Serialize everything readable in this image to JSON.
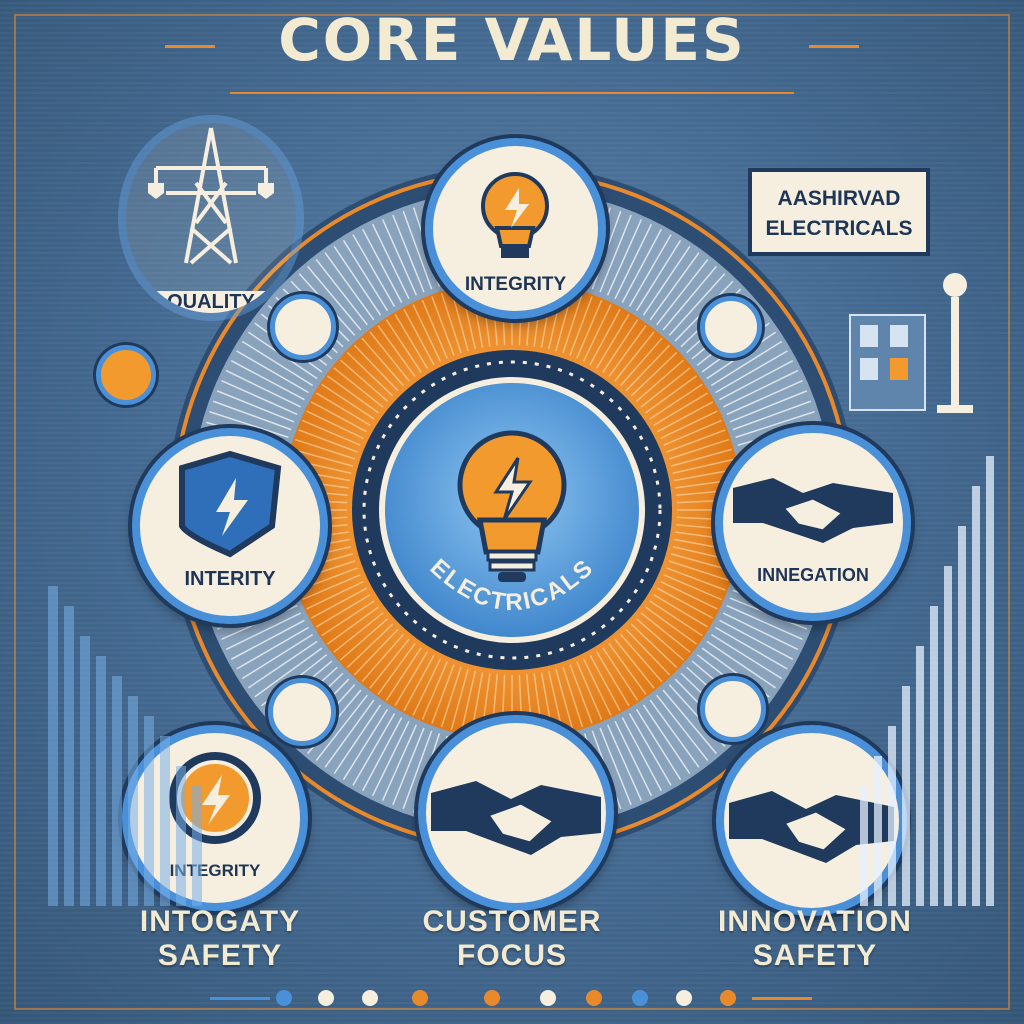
{
  "title": "CORE VALUES",
  "brand": {
    "line1": "AASHIRVAD",
    "line2": "ELECTRICALS"
  },
  "center_label": "ELECTRICALS",
  "nodes": {
    "top": "INTEGRITY",
    "quality": "QUALITY",
    "left": "INTERITY",
    "right": "INNEGATION",
    "bottom_left": "INTEGRITY"
  },
  "captions": {
    "left": {
      "line1": "INTOGATY",
      "line2": "SAFETY"
    },
    "center": {
      "line1": "CUSTOMER",
      "line2": "FOCUS"
    },
    "right": {
      "line1": "INNOVATION",
      "line2": "SAFETY"
    }
  },
  "colors": {
    "background": "#43688f",
    "accent": "#e88a2c",
    "ring_blue": "#4a90d9",
    "navy": "#1f3a5c",
    "cream": "#f6efe0"
  },
  "icons": [
    "transmission-tower-icon",
    "lightbulb-icon",
    "shield-bolt-icon",
    "handshake-icon",
    "bolt-badge-icon",
    "street-lamp-icon",
    "building-icon"
  ]
}
